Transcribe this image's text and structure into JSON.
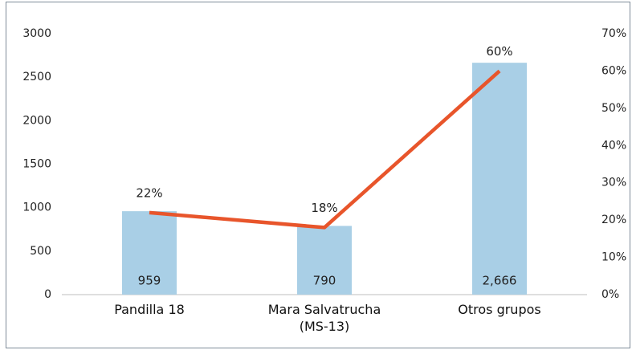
{
  "chart_data": {
    "type": "bar",
    "categories": [
      "Pandilla 18",
      "Mara Salvatrucha (MS-13)",
      "Otros grupos"
    ],
    "series": [
      {
        "type": "bar",
        "color": "#a9cfe6",
        "values": [
          959,
          790,
          2666
        ],
        "value_labels": [
          "959",
          "790",
          "2,666"
        ]
      },
      {
        "type": "line",
        "axis": "y2",
        "color": "#e8552b",
        "values": [
          22,
          18,
          60
        ],
        "value_labels": [
          "22%",
          "18%",
          "60%"
        ]
      }
    ],
    "ylim": [
      0,
      3000
    ],
    "yticks": [
      0,
      500,
      1000,
      1500,
      2000,
      2500,
      3000
    ],
    "y2lim": [
      0,
      70
    ],
    "y2ticks": [
      {
        "value": 0,
        "label": "0%"
      },
      {
        "value": 10,
        "label": "10%"
      },
      {
        "value": 20,
        "label": "20%"
      },
      {
        "value": 30,
        "label": "30%"
      },
      {
        "value": 40,
        "label": "40%"
      },
      {
        "value": 50,
        "label": "50%"
      },
      {
        "value": 60,
        "label": "60%"
      },
      {
        "value": 70,
        "label": "70%"
      }
    ]
  }
}
